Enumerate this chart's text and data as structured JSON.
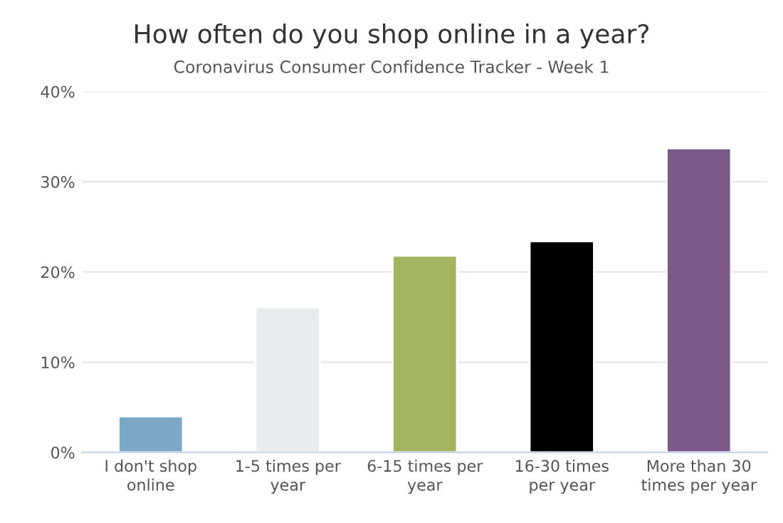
{
  "chart_data": {
    "type": "bar",
    "title": "How often do you shop online in a year?",
    "subtitle": "Coronavirus Consumer Confidence Tracker - Week 1",
    "categories": [
      "I don't shop online",
      "1-5 times per year",
      "6-15 times per year",
      "16-30 times per year",
      "More than 30 times per year"
    ],
    "values": [
      4.0,
      16.1,
      21.8,
      23.4,
      33.7
    ],
    "colors": [
      "#6eaad4",
      "#e8ecf0",
      "#abc350",
      "#000000",
      "#7e5291"
    ],
    "ylim": [
      0,
      40
    ],
    "yticks": [
      {
        "value": 0,
        "label": "0%"
      },
      {
        "value": 10,
        "label": "10%"
      },
      {
        "value": 20,
        "label": "20%"
      },
      {
        "value": 30,
        "label": "30%"
      },
      {
        "value": 40,
        "label": "40%"
      }
    ],
    "grid": "y"
  }
}
